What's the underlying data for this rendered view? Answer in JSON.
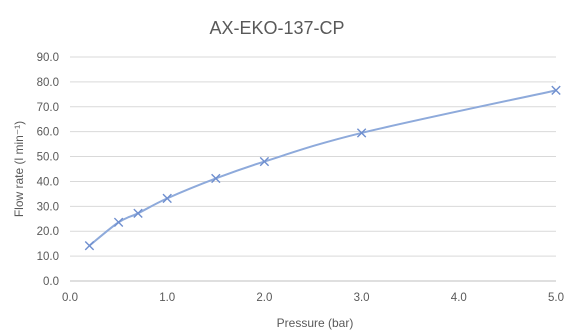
{
  "chart_data": {
    "type": "line",
    "title": "AX-EKO-137-CP",
    "xlabel": "Pressure (bar)",
    "ylabel": "Flow rate (l min⁻¹)",
    "xlim": [
      0.0,
      5.0
    ],
    "ylim": [
      0.0,
      90.0
    ],
    "x_ticks": [
      "0.0",
      "1.0",
      "2.0",
      "3.0",
      "4.0",
      "5.0"
    ],
    "y_ticks": [
      "0.0",
      "10.0",
      "20.0",
      "30.0",
      "40.0",
      "50.0",
      "60.0",
      "70.0",
      "80.0",
      "90.0"
    ],
    "grid": "horizontal",
    "legend": "none",
    "series": [
      {
        "x": [
          0.2,
          0.5,
          0.7,
          1.0,
          1.5,
          2.0,
          3.0,
          5.0
        ],
        "y": [
          14.2,
          23.6,
          27.2,
          33.2,
          41.2,
          48.0,
          59.5,
          76.6
        ],
        "marker": "x",
        "smooth": true,
        "color": "#8eaadb"
      }
    ]
  }
}
